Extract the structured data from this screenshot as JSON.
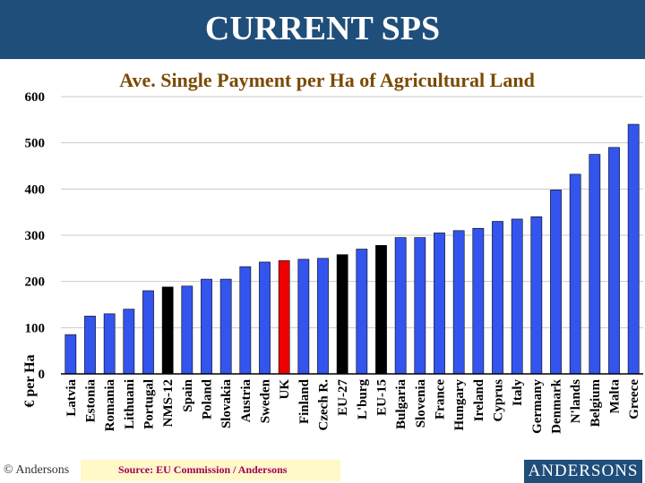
{
  "header": {
    "title": "CURRENT SPS"
  },
  "footer": {
    "copyright": "© Andersons",
    "source": "Source: EU Commission / Andersons",
    "logo": "ANDERSONS"
  },
  "colors": {
    "default_bar": "#3355ee",
    "highlight_bar": "#ee0000",
    "aggregate_bar": "#000000",
    "title_bar": "#1f4e7a",
    "subtitle": "#7a4a00"
  },
  "chart_data": {
    "type": "bar",
    "title": "Ave. Single Payment per Ha of Agricultural Land",
    "ylabel": "€ per Ha",
    "xlabel": "",
    "ylim": [
      0,
      600
    ],
    "yticks": [
      0,
      100,
      200,
      300,
      400,
      500,
      600
    ],
    "grid": true,
    "categories": [
      "Latvia",
      "Estonia",
      "Romania",
      "Lithuani",
      "Portugal",
      "NMS-12",
      "Spain",
      "Poland",
      "Slovakia",
      "Austria",
      "Sweden",
      "UK",
      "Finland",
      "Czech R.",
      "EU-27",
      "L'burg",
      "EU-15",
      "Bulgaria",
      "Slovenia",
      "France",
      "Hungary",
      "Ireland",
      "Cyprus",
      "Italy",
      "Germany",
      "Denmark",
      "N'lands",
      "Belgium",
      "Malta",
      "Greece"
    ],
    "values": [
      85,
      125,
      130,
      140,
      180,
      188,
      190,
      205,
      205,
      232,
      242,
      245,
      248,
      250,
      258,
      270,
      278,
      295,
      295,
      305,
      310,
      315,
      330,
      335,
      340,
      398,
      432,
      475,
      490,
      540
    ],
    "bar_colors": [
      "blue",
      "blue",
      "blue",
      "blue",
      "blue",
      "black",
      "blue",
      "blue",
      "blue",
      "blue",
      "blue",
      "red",
      "blue",
      "blue",
      "black",
      "blue",
      "black",
      "blue",
      "blue",
      "blue",
      "blue",
      "blue",
      "blue",
      "blue",
      "blue",
      "blue",
      "blue",
      "blue",
      "blue",
      "blue"
    ]
  }
}
